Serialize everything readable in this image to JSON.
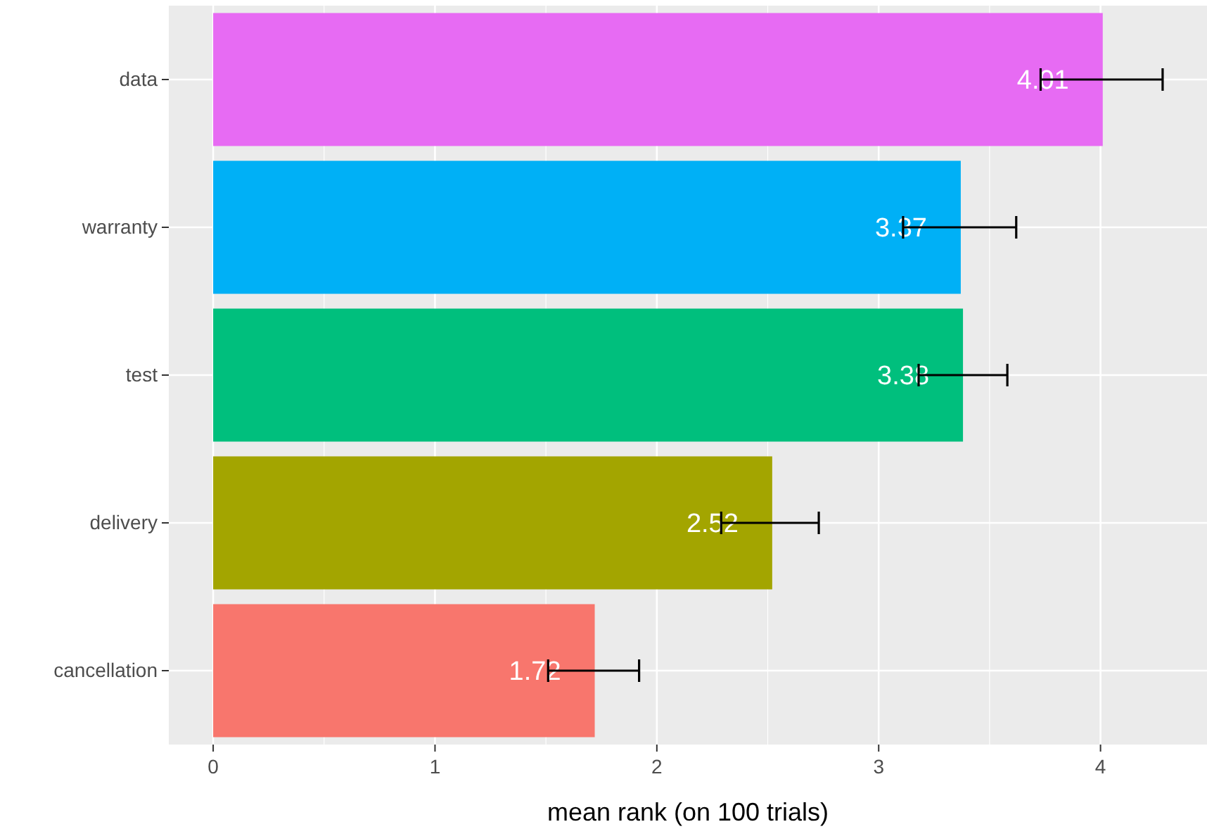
{
  "chart_data": {
    "type": "bar",
    "orientation": "horizontal",
    "xlabel": "mean rank (on 100 trials)",
    "categories": [
      "data",
      "warranty",
      "test",
      "delivery",
      "cancellation"
    ],
    "values": [
      4.01,
      3.37,
      3.38,
      2.52,
      1.72
    ],
    "colors": [
      "#e76bf3",
      "#00b0f6",
      "#00bf7d",
      "#a3a500",
      "#f8766d"
    ],
    "errors": [
      [
        3.73,
        4.28
      ],
      [
        3.11,
        3.62
      ],
      [
        3.18,
        3.58
      ],
      [
        2.29,
        2.73
      ],
      [
        1.51,
        1.92
      ]
    ],
    "xlim": [
      -0.2,
      4.48
    ],
    "xticks": [
      0,
      1,
      2,
      3,
      4
    ],
    "grid": true,
    "data_labels": true
  }
}
